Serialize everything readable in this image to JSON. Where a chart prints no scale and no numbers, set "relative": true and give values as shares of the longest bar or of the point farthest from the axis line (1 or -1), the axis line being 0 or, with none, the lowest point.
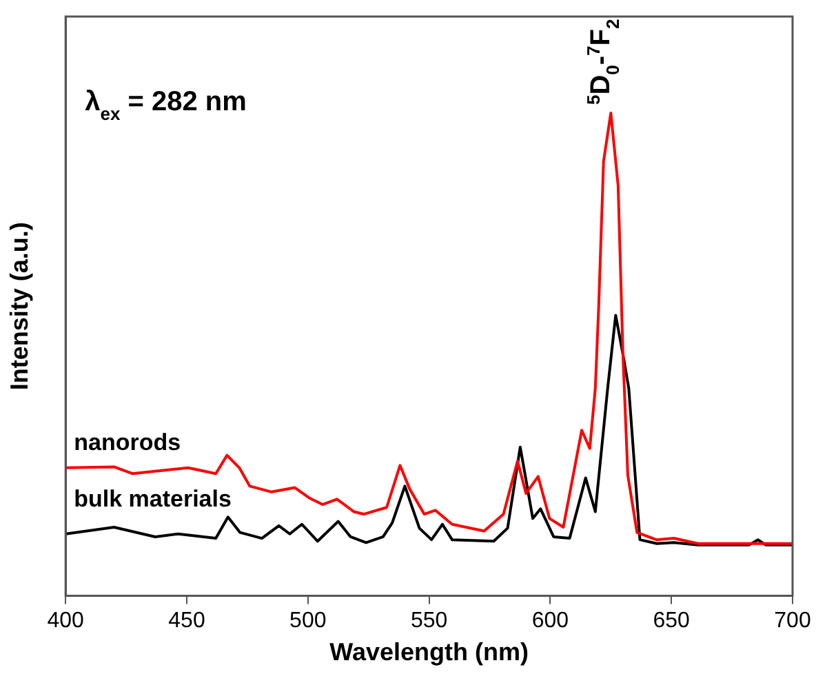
{
  "chart_data": {
    "type": "line",
    "relative": true,
    "xlabel": "Wavelength (nm)",
    "ylabel": "Intensity (a.u.)",
    "xlim": [
      400,
      700
    ],
    "xticks": [
      400,
      450,
      500,
      550,
      600,
      650,
      700
    ],
    "grid": false,
    "legend": false,
    "marker": "none",
    "line_style": "solid",
    "annotations": [
      "λ$_{ex}$ = 282 nm",
      "$^{5}$D$_{0}$-$^{7}$F$_{2}$"
    ],
    "series": [
      {
        "name": "nanorods",
        "color": "#ff0000",
        "x": [
          400,
          420,
          427.5,
          450.5,
          462,
          466.6,
          471.7,
          476,
          485,
          494.6,
          500.4,
          506,
          512,
          519,
          523,
          532.5,
          538,
          542,
          548,
          552.6,
          559.5,
          572.7,
          580.7,
          586.5,
          590,
          595,
          599.7,
          605.4,
          613,
          616.3,
          618.6,
          620,
          622,
          625,
          628,
          630,
          632,
          635.8,
          643.8,
          651,
          661,
          684,
          700
        ],
        "values": [
          0.265,
          0.267,
          0.253,
          0.265,
          0.253,
          0.291,
          0.265,
          0.227,
          0.215,
          0.224,
          0.203,
          0.189,
          0.2,
          0.174,
          0.169,
          0.183,
          0.27,
          0.221,
          0.169,
          0.177,
          0.148,
          0.134,
          0.169,
          0.279,
          0.212,
          0.247,
          0.16,
          0.142,
          0.343,
          0.305,
          0.43,
          0.6,
          0.9,
          1,
          0.85,
          0.5,
          0.25,
          0.131,
          0.116,
          0.119,
          0.108,
          0.108,
          0.108
        ]
      },
      {
        "name": "bulk materials",
        "color": "#000000",
        "x": [
          400,
          420,
          437,
          446.5,
          462,
          467,
          472,
          481,
          488,
          492.5,
          497.5,
          504,
          512.5,
          517.6,
          524,
          531,
          534.8,
          540,
          546,
          551,
          555.5,
          559.5,
          576.7,
          582.4,
          587.6,
          592.8,
          596,
          601.4,
          608,
          614.6,
          618.6,
          623.7,
          627,
          630,
          632.4,
          637,
          644,
          651,
          661,
          682,
          685.7,
          689,
          700
        ],
        "values": [
          0.128,
          0.142,
          0.122,
          0.128,
          0.119,
          0.163,
          0.131,
          0.119,
          0.145,
          0.128,
          0.148,
          0.113,
          0.154,
          0.122,
          0.11,
          0.122,
          0.151,
          0.227,
          0.14,
          0.116,
          0.148,
          0.116,
          0.113,
          0.14,
          0.308,
          0.16,
          0.18,
          0.122,
          0.119,
          0.244,
          0.174,
          0.43,
          0.581,
          0.5,
          0.43,
          0.116,
          0.108,
          0.11,
          0.105,
          0.105,
          0.116,
          0.105,
          0.105
        ]
      }
    ]
  }
}
